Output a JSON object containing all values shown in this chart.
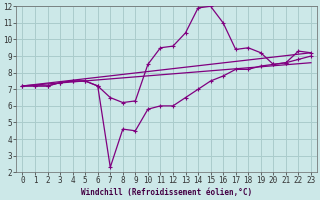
{
  "xlabel": "Windchill (Refroidissement éolien,°C)",
  "bg_color": "#cce8e8",
  "grid_color": "#aacccc",
  "line_color": "#800080",
  "xlim": [
    -0.5,
    23.5
  ],
  "ylim": [
    2,
    12
  ],
  "xticks": [
    0,
    1,
    2,
    3,
    4,
    5,
    6,
    7,
    8,
    9,
    10,
    11,
    12,
    13,
    14,
    15,
    16,
    17,
    18,
    19,
    20,
    21,
    22,
    23
  ],
  "yticks": [
    2,
    3,
    4,
    5,
    6,
    7,
    8,
    9,
    10,
    11,
    12
  ],
  "series1_x": [
    0,
    1,
    2,
    3,
    4,
    5,
    6,
    7,
    8,
    9,
    10,
    11,
    12,
    13,
    14,
    15,
    16,
    17,
    18,
    19,
    20,
    21,
    22,
    23
  ],
  "series1_y": [
    7.2,
    7.2,
    7.2,
    7.4,
    7.5,
    7.5,
    7.2,
    6.5,
    6.2,
    6.3,
    8.5,
    9.5,
    9.6,
    10.4,
    11.9,
    12.0,
    11.0,
    9.4,
    9.5,
    9.2,
    8.5,
    8.6,
    9.3,
    9.2
  ],
  "series2_x": [
    0,
    1,
    2,
    3,
    4,
    5,
    6,
    7,
    8,
    9,
    10,
    11,
    12,
    13,
    14,
    15,
    16,
    17,
    18,
    19,
    20,
    21,
    22,
    23
  ],
  "series2_y": [
    7.2,
    7.2,
    7.2,
    7.4,
    7.5,
    7.5,
    7.2,
    2.3,
    4.6,
    4.5,
    5.8,
    6.0,
    6.0,
    6.5,
    7.0,
    7.5,
    7.8,
    8.2,
    8.2,
    8.4,
    8.5,
    8.6,
    8.8,
    9.0
  ],
  "series3_x": [
    0,
    23
  ],
  "series3_y": [
    7.2,
    8.6
  ],
  "series4_x": [
    0,
    23
  ],
  "series4_y": [
    7.2,
    9.2
  ],
  "tick_fontsize": 5.5,
  "xlabel_fontsize": 5.5
}
